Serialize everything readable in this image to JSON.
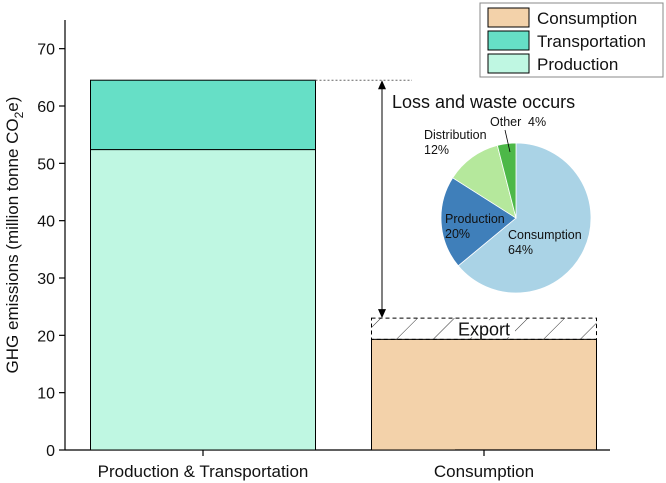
{
  "chart_data": {
    "type": "bar",
    "stacked": true,
    "ylabel_main": "GHG emissions (million tonne CO",
    "ylabel_sub": "2",
    "ylabel_end": "e)",
    "ylim": [
      0,
      75
    ],
    "yticks": [
      0,
      10,
      20,
      30,
      40,
      50,
      60,
      70
    ],
    "grid": false,
    "legend_position": "top-right",
    "categories": [
      "Production & Transportation",
      "Consumption"
    ],
    "series": [
      {
        "name": "Production",
        "color": "#bff7e2",
        "values": [
          52.4,
          0
        ]
      },
      {
        "name": "Transportation",
        "color": "#66dfc6",
        "values": [
          12.1,
          0
        ]
      },
      {
        "name": "Consumption",
        "color": "#f3d2aa",
        "values": [
          0,
          19.3
        ]
      }
    ],
    "legend_order": [
      "Consumption",
      "Transportation",
      "Production"
    ],
    "export": {
      "label": "Export",
      "bottom": 19.3,
      "top": 23.0,
      "pattern": "hatched"
    },
    "annotation": {
      "text": "Loss and waste occurs",
      "from": 64.5,
      "to": 23.0
    },
    "inset_pie": {
      "type": "pie",
      "slices": [
        {
          "label": "Consumption",
          "pct_text": "64%",
          "value": 64,
          "color": "#aad3e6",
          "label_color": "#111111"
        },
        {
          "label": "Production",
          "pct_text": "20%",
          "value": 20,
          "color": "#3f7fba",
          "label_color": "#ffffff"
        },
        {
          "label": "Distribution",
          "pct_text": "12%",
          "value": 12,
          "color": "#b5e89c",
          "label_color": "#111111"
        },
        {
          "label": "Other",
          "pct_text": "4%",
          "value": 4,
          "color": "#4db848",
          "label_color": "#111111"
        }
      ]
    }
  }
}
